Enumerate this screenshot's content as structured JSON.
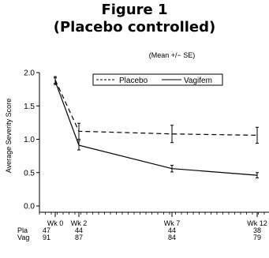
{
  "figure": {
    "title_line1": "Figure 1",
    "title_line2": "(Placebo controlled)"
  },
  "chart_data": {
    "type": "line",
    "subtitle": "(Mean +/− SE)",
    "ylabel": "Average Severity Score",
    "xlabel": "",
    "ylim": [
      0,
      2.0
    ],
    "yticks": [
      0.0,
      0.5,
      1.0,
      1.5,
      2.0
    ],
    "ytick_labels": [
      "0.0",
      "0.5",
      "1.0",
      "1.5",
      "2.0"
    ],
    "x": [
      0,
      2,
      7,
      12
    ],
    "xlim": [
      0,
      12
    ],
    "xtick_labels": [
      "Wk  0",
      "Wk  2",
      "Wk  7",
      "Wk  12"
    ],
    "grid": false,
    "legend_position": "top-center",
    "series": [
      {
        "name": "Placebo",
        "style": "dashed",
        "values": [
          1.89,
          1.12,
          1.08,
          1.06
        ],
        "se": [
          0.05,
          0.12,
          0.13,
          0.12
        ],
        "n": [
          "47",
          "44",
          "44",
          "38"
        ]
      },
      {
        "name": "Vagifem",
        "style": "solid",
        "values": [
          1.87,
          0.91,
          0.56,
          0.46
        ],
        "se": [
          0.05,
          0.07,
          0.05,
          0.04
        ],
        "n": [
          "91",
          "87",
          "84",
          "79"
        ]
      }
    ],
    "n_row_labels": [
      "Pla",
      "Vag"
    ]
  }
}
